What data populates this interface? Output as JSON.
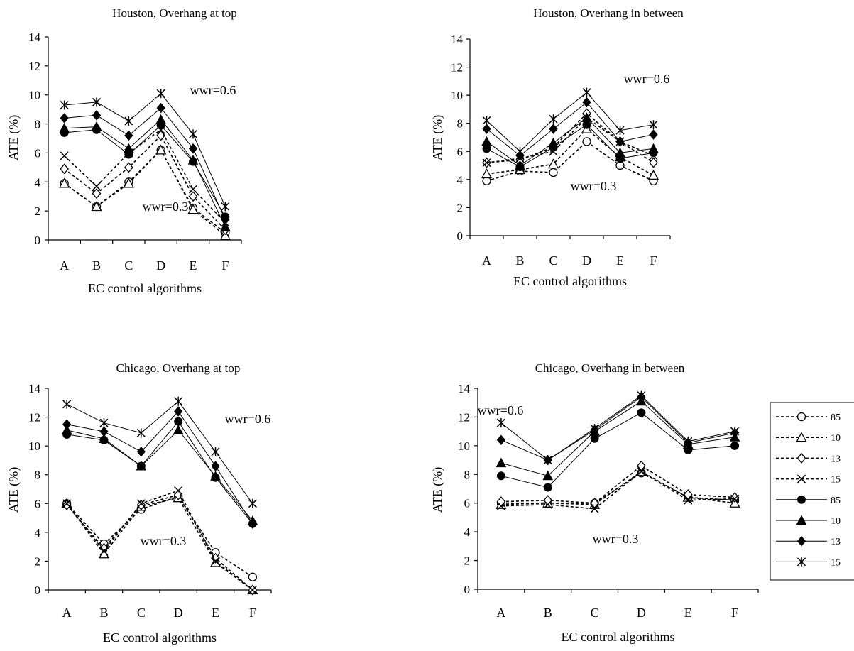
{
  "chart_data": [
    {
      "type": "line",
      "title": "Houston, Overhang at top",
      "xlabel": "EC control algorithms",
      "ylabel": "ATE (%)",
      "ylim": [
        0,
        14
      ],
      "yticks": [
        0,
        2,
        4,
        6,
        8,
        10,
        12,
        14
      ],
      "categories": [
        "A",
        "B",
        "C",
        "D",
        "E",
        "F"
      ],
      "annotations": [
        "wwr=0.6",
        "wwr=0.3"
      ],
      "series": [
        {
          "legend_key": "85-dashed",
          "values": [
            3.9,
            2.3,
            4.0,
            6.2,
            2.2,
            0.5
          ]
        },
        {
          "legend_key": "10-dashed",
          "values": [
            3.9,
            2.3,
            3.9,
            6.2,
            2.1,
            0.3
          ]
        },
        {
          "legend_key": "13-dashed",
          "values": [
            4.9,
            3.2,
            5.0,
            7.2,
            3.0,
            0.7
          ]
        },
        {
          "legend_key": "15-dashed",
          "values": [
            5.8,
            3.7,
            6.0,
            7.6,
            3.5,
            1.2
          ]
        },
        {
          "legend_key": "85-solid",
          "values": [
            7.4,
            7.6,
            5.9,
            7.9,
            5.4,
            1.6
          ]
        },
        {
          "legend_key": "10-solid",
          "values": [
            7.7,
            7.8,
            6.3,
            8.3,
            5.5,
            0.9
          ]
        },
        {
          "legend_key": "13-solid",
          "values": [
            8.4,
            8.6,
            7.2,
            9.1,
            6.3,
            1.4
          ]
        },
        {
          "legend_key": "15-solid",
          "values": [
            9.3,
            9.5,
            8.2,
            10.1,
            7.3,
            2.3
          ]
        }
      ]
    },
    {
      "type": "line",
      "title": "Houston, Overhang in between",
      "xlabel": "EC control algorithms",
      "ylabel": "ATE (%)",
      "ylim": [
        0,
        14
      ],
      "yticks": [
        0,
        2,
        4,
        6,
        8,
        10,
        12,
        14
      ],
      "categories": [
        "A",
        "B",
        "C",
        "D",
        "E",
        "F"
      ],
      "annotations": [
        "wwr=0.6",
        "wwr=0.3"
      ],
      "series": [
        {
          "legend_key": "85-dashed",
          "values": [
            3.9,
            4.6,
            4.5,
            6.7,
            5.0,
            3.9
          ]
        },
        {
          "legend_key": "10-dashed",
          "values": [
            4.4,
            4.7,
            5.1,
            7.6,
            5.6,
            4.3
          ]
        },
        {
          "legend_key": "13-dashed",
          "values": [
            5.2,
            5.4,
            6.3,
            8.7,
            6.7,
            5.2
          ]
        },
        {
          "legend_key": "15-dashed",
          "values": [
            5.2,
            5.5,
            6.0,
            8.4,
            6.7,
            5.7
          ]
        },
        {
          "legend_key": "85-solid",
          "values": [
            6.2,
            4.9,
            6.3,
            7.9,
            5.5,
            5.9
          ]
        },
        {
          "legend_key": "10-solid",
          "values": [
            6.7,
            5.0,
            6.6,
            8.4,
            5.9,
            6.2
          ]
        },
        {
          "legend_key": "13-solid",
          "values": [
            7.6,
            5.7,
            7.6,
            9.5,
            6.7,
            7.2
          ]
        },
        {
          "legend_key": "15-solid",
          "values": [
            8.2,
            6.0,
            8.3,
            10.2,
            7.5,
            7.9
          ]
        }
      ]
    },
    {
      "type": "line",
      "title": "Chicago, Overhang at top",
      "xlabel": "EC control algorithms",
      "ylabel": "ATE (%)",
      "ylim": [
        0,
        14
      ],
      "yticks": [
        0,
        2,
        4,
        6,
        8,
        10,
        12,
        14
      ],
      "categories": [
        "A",
        "B",
        "C",
        "D",
        "E",
        "F"
      ],
      "annotations": [
        "wwr=0.6",
        "wwr=0.3"
      ],
      "series": [
        {
          "legend_key": "85-dashed",
          "values": [
            6.0,
            3.2,
            5.6,
            6.5,
            2.6,
            0.9
          ]
        },
        {
          "legend_key": "10-dashed",
          "values": [
            6.0,
            2.5,
            5.8,
            6.4,
            1.9,
            0.0
          ]
        },
        {
          "legend_key": "13-dashed",
          "values": [
            5.9,
            2.9,
            5.9,
            6.6,
            2.2,
            0.0
          ]
        },
        {
          "legend_key": "15-dashed",
          "values": [
            6.0,
            2.7,
            6.0,
            6.9,
            2.0,
            0.0
          ]
        },
        {
          "legend_key": "85-solid",
          "values": [
            10.8,
            10.4,
            8.6,
            11.7,
            7.8,
            4.6
          ]
        },
        {
          "legend_key": "10-solid",
          "values": [
            11.1,
            10.5,
            8.6,
            11.1,
            7.9,
            4.8
          ]
        },
        {
          "legend_key": "13-solid",
          "values": [
            11.5,
            11.0,
            9.6,
            12.4,
            8.6,
            4.6
          ]
        },
        {
          "legend_key": "15-solid",
          "values": [
            12.9,
            11.6,
            10.9,
            13.1,
            9.6,
            6.0
          ]
        }
      ]
    },
    {
      "type": "line",
      "title": "Chicago, Overhang in between",
      "xlabel": "EC control algorithms",
      "ylabel": "ATE (%)",
      "ylim": [
        0,
        14
      ],
      "yticks": [
        0,
        2,
        4,
        6,
        8,
        10,
        12,
        14
      ],
      "categories": [
        "A",
        "B",
        "C",
        "D",
        "E",
        "F"
      ],
      "annotations": [
        "wwr=0.6",
        "wwr=0.3"
      ],
      "series": [
        {
          "legend_key": "85-dashed",
          "values": [
            6.0,
            6.0,
            6.0,
            8.1,
            6.4,
            6.2
          ]
        },
        {
          "legend_key": "10-dashed",
          "values": [
            5.9,
            6.0,
            5.9,
            8.2,
            6.4,
            6.0
          ]
        },
        {
          "legend_key": "13-dashed",
          "values": [
            6.1,
            6.2,
            6.0,
            8.6,
            6.6,
            6.4
          ]
        },
        {
          "legend_key": "15-dashed",
          "values": [
            5.8,
            5.9,
            5.6,
            8.2,
            6.2,
            6.3
          ]
        },
        {
          "legend_key": "85-solid",
          "values": [
            7.9,
            7.1,
            10.5,
            12.3,
            9.7,
            10.0
          ]
        },
        {
          "legend_key": "10-solid",
          "values": [
            8.8,
            7.9,
            11.0,
            13.1,
            10.1,
            10.6
          ]
        },
        {
          "legend_key": "13-solid",
          "values": [
            10.4,
            9.0,
            11.1,
            13.4,
            10.2,
            10.9
          ]
        },
        {
          "legend_key": "15-solid",
          "values": [
            11.6,
            9.0,
            11.2,
            13.5,
            10.3,
            11.0
          ]
        }
      ]
    }
  ],
  "legend": {
    "items": [
      {
        "key": "85-dashed",
        "label": "85",
        "marker": "open-circle",
        "dashed": true
      },
      {
        "key": "10-dashed",
        "label": "10",
        "marker": "open-triangle",
        "dashed": true
      },
      {
        "key": "13-dashed",
        "label": "13",
        "marker": "open-diamond",
        "dashed": true
      },
      {
        "key": "15-dashed",
        "label": "15",
        "marker": "x-mark",
        "dashed": true
      },
      {
        "key": "85-solid",
        "label": "85",
        "marker": "filled-circle",
        "dashed": false
      },
      {
        "key": "10-solid",
        "label": "10",
        "marker": "filled-triangle",
        "dashed": false
      },
      {
        "key": "13-solid",
        "label": "13",
        "marker": "filled-diamond",
        "dashed": false
      },
      {
        "key": "15-solid",
        "label": "15",
        "marker": "asterisk",
        "dashed": false
      }
    ]
  }
}
